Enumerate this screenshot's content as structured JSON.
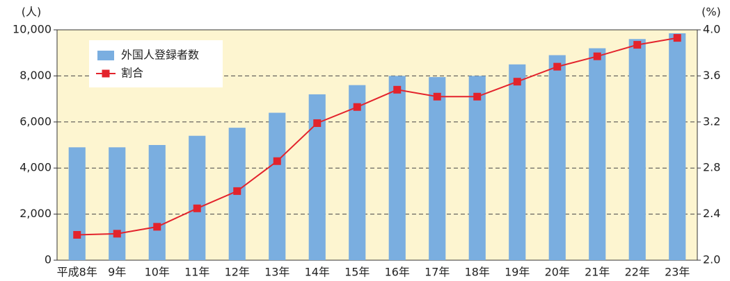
{
  "chart_data": {
    "type": "bar_line",
    "y_label": "(人)",
    "y2_label": "(%)",
    "categories": [
      "平成8年",
      "9年",
      "10年",
      "11年",
      "12年",
      "13年",
      "14年",
      "15年",
      "16年",
      "17年",
      "18年",
      "19年",
      "20年",
      "21年",
      "22年",
      "23年"
    ],
    "series": [
      {
        "name": "外国人登録者数",
        "type": "bar",
        "color": "#7aaee0",
        "axis": "y",
        "values": [
          4900,
          4900,
          5000,
          5400,
          5750,
          6400,
          7200,
          7600,
          8000,
          7950,
          8000,
          8500,
          8900,
          9200,
          9600,
          9850
        ]
      },
      {
        "name": "割合",
        "type": "line",
        "color": "#e3232c",
        "axis": "y2",
        "values": [
          2.22,
          2.23,
          2.29,
          2.45,
          2.6,
          2.86,
          3.19,
          3.33,
          3.48,
          3.42,
          3.42,
          3.55,
          3.68,
          3.77,
          3.87,
          3.93
        ]
      }
    ],
    "ylim": [
      0,
      10000
    ],
    "yticks": [
      0,
      {
        "value": 2000,
        "label": "2,000"
      },
      {
        "value": 4000,
        "label": "4,000"
      },
      {
        "value": 6000,
        "label": "6,000"
      },
      {
        "value": 8000,
        "label": "8,000"
      },
      {
        "value": 10000,
        "label": "10,000"
      }
    ],
    "y2lim": [
      2,
      4
    ],
    "y2ticks": [
      {
        "value": 2,
        "label": "2.0"
      },
      2.4,
      2.8,
      3.2,
      3.6,
      {
        "value": 4,
        "label": "4.0"
      }
    ],
    "grid": true,
    "legend": "upper left"
  }
}
